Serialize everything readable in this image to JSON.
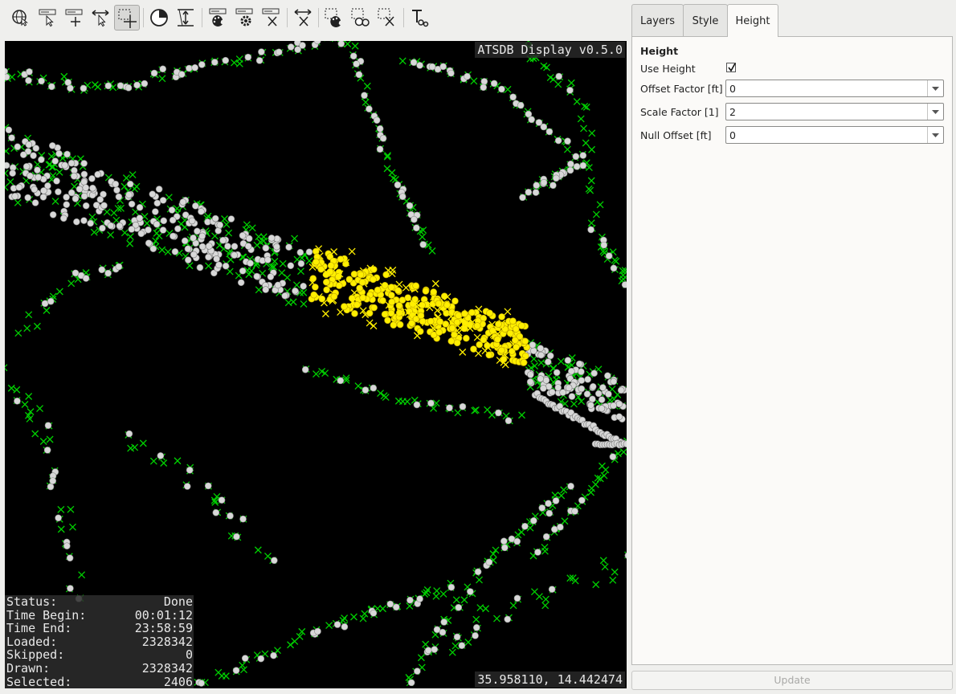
{
  "toolbar": {
    "tools": [
      {
        "name": "globe-tool-icon"
      },
      {
        "name": "annotation-navigate-tool-icon"
      },
      {
        "name": "add-annotation-tool-icon"
      },
      {
        "name": "select-move-tool-icon"
      },
      {
        "name": "rectangle-select-tool-icon",
        "active": true
      },
      {
        "name": "time-filter-tool-icon"
      },
      {
        "name": "height-filter-tool-icon"
      },
      {
        "name": "layer-style-tool-icon"
      },
      {
        "name": "layer-settings-tool-icon"
      },
      {
        "name": "remove-layer-tool-icon"
      },
      {
        "name": "clear-selection-tool-icon"
      },
      {
        "name": "selection-style-tool-icon"
      },
      {
        "name": "selection-invert-tool-icon"
      },
      {
        "name": "selection-clear-tool-icon"
      },
      {
        "name": "text-label-tool-icon"
      }
    ]
  },
  "map": {
    "title": "ATSDB Display v0.5.0",
    "coords": "35.958110, 14.442474",
    "colors": {
      "background": "#000000",
      "target": "#d8d8d8",
      "plot": "#00d000",
      "selected": "#ffef00"
    }
  },
  "status": {
    "rows": [
      {
        "label": "Status:",
        "value": "Done"
      },
      {
        "label": "Time Begin:",
        "value": "00:01:12"
      },
      {
        "label": "Time End:",
        "value": "23:58:59"
      },
      {
        "label": "Loaded:",
        "value": "2328342"
      },
      {
        "label": "Skipped:",
        "value": "0"
      },
      {
        "label": "Drawn:",
        "value": "2328342"
      },
      {
        "label": "Selected:",
        "value": "2406"
      }
    ]
  },
  "tabs": [
    {
      "label": "Layers"
    },
    {
      "label": "Style"
    },
    {
      "label": "Height",
      "active": true
    }
  ],
  "height_panel": {
    "title": "Height",
    "use_height_label": "Use Height",
    "use_height_checked": true,
    "offset_factor_label": "Offset Factor [ft]",
    "offset_factor_value": "0",
    "scale_factor_label": "Scale Factor [1]",
    "scale_factor_value": "2",
    "null_offset_label": "Null Offset [ft]",
    "null_offset_value": "0"
  },
  "update_label": "Update"
}
